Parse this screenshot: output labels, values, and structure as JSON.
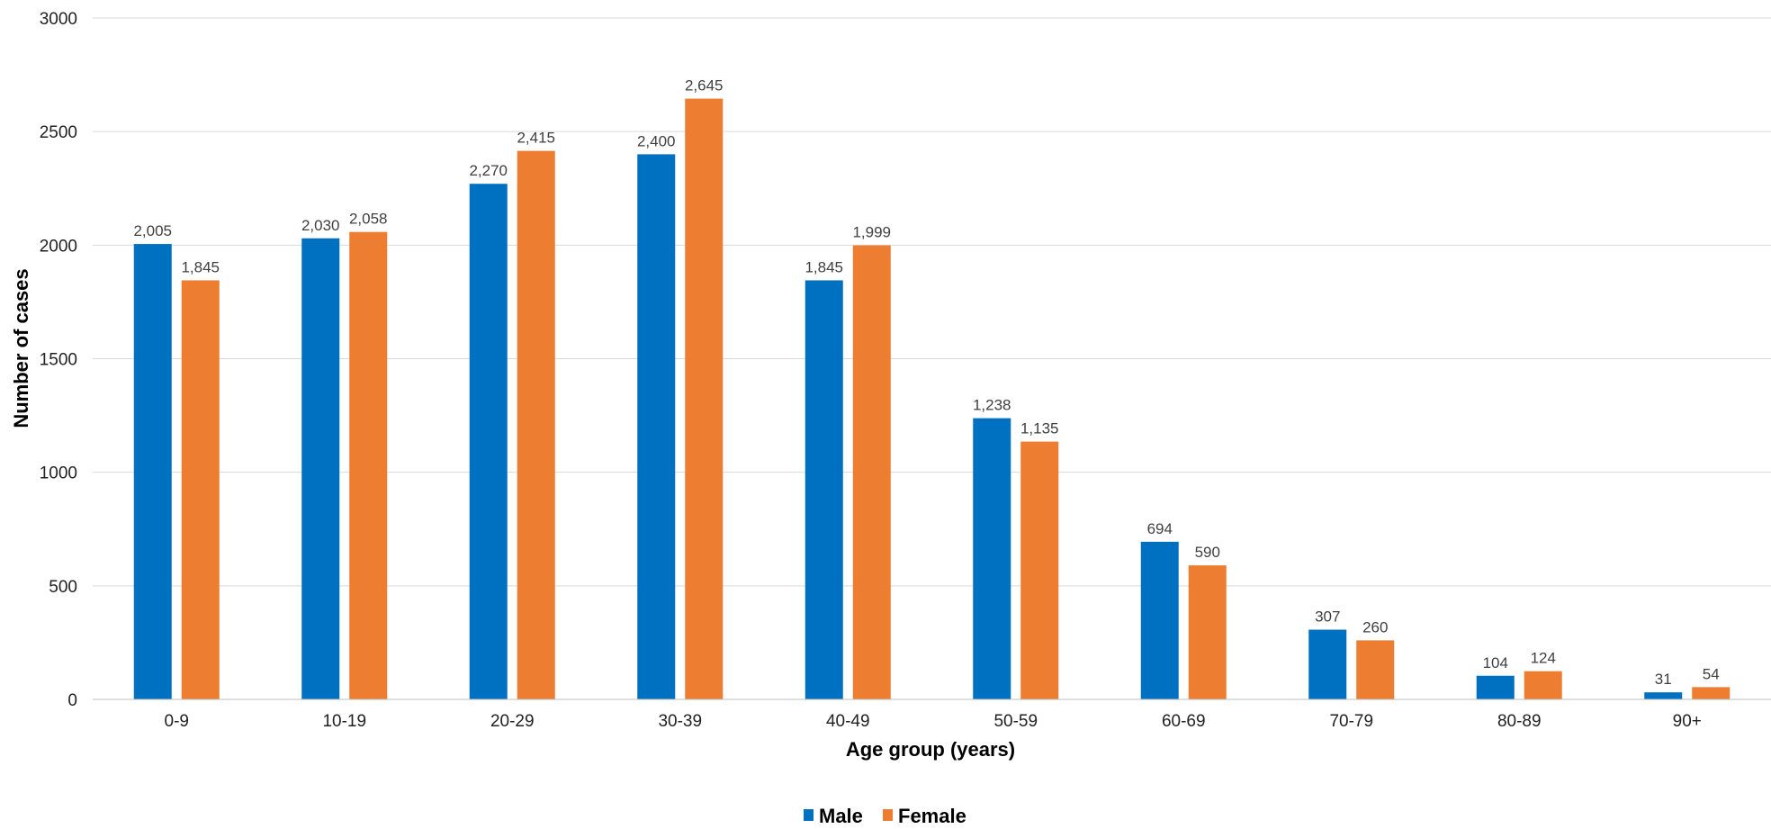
{
  "chart_data": {
    "type": "bar",
    "xlabel": "Age group (years)",
    "ylabel": "Number of cases",
    "ylim": [
      0,
      3000
    ],
    "yticks": [
      0,
      500,
      1000,
      1500,
      2000,
      2500,
      3000
    ],
    "grid": true,
    "legend_position": "bottom",
    "categories": [
      "0-9",
      "10-19",
      "20-29",
      "30-39",
      "40-49",
      "50-59",
      "60-69",
      "70-79",
      "80-89",
      "90+"
    ],
    "series": [
      {
        "name": "Male",
        "color": "#0070C0",
        "values": [
          2005,
          2030,
          2270,
          2400,
          1845,
          1238,
          694,
          307,
          104,
          31
        ],
        "labels": [
          "2,005",
          "2,030",
          "2,270",
          "2,400",
          "1,845",
          "1,238",
          "694",
          "307",
          "104",
          "31"
        ]
      },
      {
        "name": "Female",
        "color": "#ED7D31",
        "values": [
          1845,
          2058,
          2415,
          2645,
          1999,
          1135,
          590,
          260,
          124,
          54
        ],
        "labels": [
          "1,845",
          "2,058",
          "2,415",
          "2,645",
          "1,999",
          "1,135",
          "590",
          "260",
          "124",
          "54"
        ]
      }
    ]
  }
}
